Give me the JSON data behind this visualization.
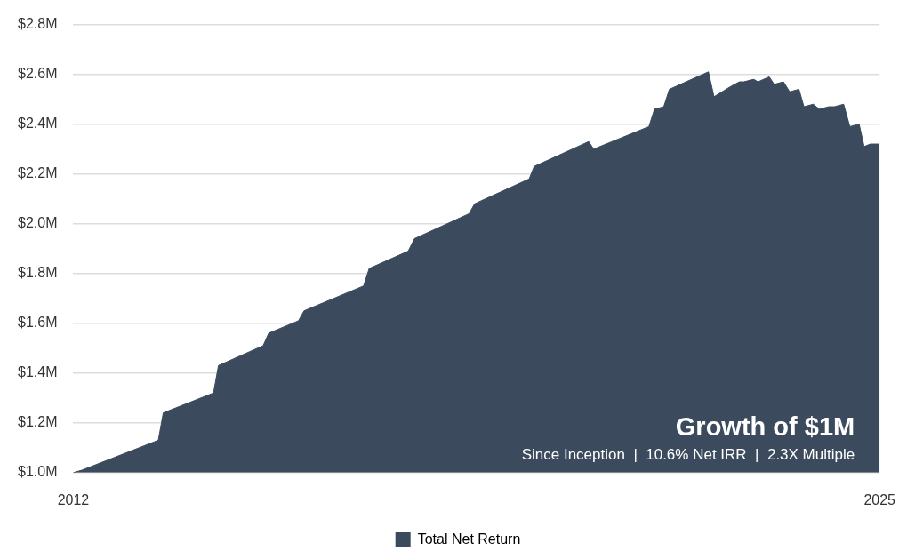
{
  "chart_data": {
    "type": "area",
    "title": "Growth of $1M",
    "subtitle": "Since Inception  |  10.6% Net IRR  |  2.3X Multiple",
    "x": [
      2012.0,
      2012.14,
      2013.37,
      2013.45,
      2014.26,
      2014.34,
      2015.06,
      2015.15,
      2015.63,
      2015.72,
      2016.68,
      2016.77,
      2017.4,
      2017.5,
      2018.38,
      2018.47,
      2019.35,
      2019.43,
      2020.31,
      2020.39,
      2021.28,
      2021.37,
      2021.52,
      2021.61,
      2022.24,
      2022.33,
      2022.46,
      2022.59,
      2022.74,
      2022.81,
      2022.97,
      2023.04,
      2023.22,
      2023.3,
      2023.45,
      2023.55,
      2023.7,
      2023.78,
      2023.93,
      2024.03,
      2024.18,
      2024.27,
      2024.42,
      2024.52,
      2024.67,
      2024.75,
      2024.85,
      2025.0
    ],
    "series": [
      {
        "name": "Total Net Return",
        "color": "#3b4b5d",
        "values": [
          1.0,
          1.01,
          1.13,
          1.24,
          1.32,
          1.43,
          1.51,
          1.56,
          1.61,
          1.65,
          1.75,
          1.82,
          1.89,
          1.94,
          2.04,
          2.08,
          2.18,
          2.23,
          2.33,
          2.3,
          2.39,
          2.46,
          2.47,
          2.54,
          2.61,
          2.51,
          2.53,
          2.55,
          2.57,
          2.57,
          2.58,
          2.57,
          2.59,
          2.56,
          2.57,
          2.53,
          2.54,
          2.47,
          2.48,
          2.46,
          2.47,
          2.47,
          2.48,
          2.39,
          2.4,
          2.31,
          2.32,
          2.32
        ]
      }
    ],
    "xlim": [
      2012,
      2025
    ],
    "xticks": [
      2012,
      2025
    ],
    "ylim": [
      1.0,
      2.8
    ],
    "yticks": [
      {
        "value": 1.0,
        "label": "$1.0M"
      },
      {
        "value": 1.2,
        "label": "$1.2M"
      },
      {
        "value": 1.4,
        "label": "$1.4M"
      },
      {
        "value": 1.6,
        "label": "$1.6M"
      },
      {
        "value": 1.8,
        "label": "$1.8M"
      },
      {
        "value": 2.0,
        "label": "$2.0M"
      },
      {
        "value": 2.2,
        "label": "$2.2M"
      },
      {
        "value": 2.4,
        "label": "$2.4M"
      },
      {
        "value": 2.6,
        "label": "$2.6M"
      },
      {
        "value": 2.8,
        "label": "$2.8M"
      }
    ],
    "grid": "y",
    "legend": "bottom",
    "marker": "none"
  }
}
